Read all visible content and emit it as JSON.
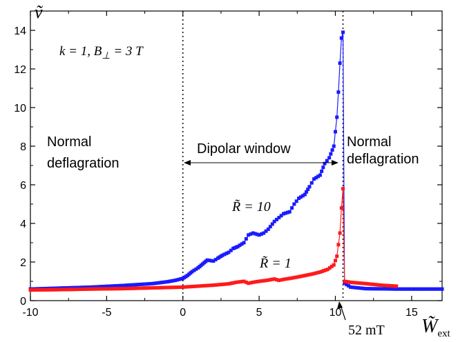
{
  "chart_data": {
    "type": "line",
    "title": "",
    "xlabel": "W̃",
    "xlabel_sub": "ext",
    "ylabel": "ṽ",
    "xlim": [
      -10,
      17
    ],
    "ylim": [
      0,
      15
    ],
    "xticks": [
      -10,
      -5,
      0,
      5,
      10,
      15
    ],
    "yticks": [
      0,
      2,
      4,
      6,
      8,
      10,
      12,
      14
    ],
    "grid": false,
    "vlines": [
      0,
      10.5
    ],
    "parameter_label": {
      "prefix": "k = 1, B",
      "sub": "⊥",
      "suffix": " = 3 T"
    },
    "region_labels": {
      "left": [
        "Normal",
        "deflagration"
      ],
      "center": "Dipolar window",
      "right": [
        "Normal",
        "deflagration"
      ]
    },
    "arrow_annotation": "52 mT",
    "series": [
      {
        "name": "R̃ = 10",
        "color": "#1a1aff",
        "x": [
          -10,
          -8,
          -6,
          -4,
          -2,
          -1,
          -0.5,
          0,
          0.3,
          0.6,
          1,
          1.3,
          1.6,
          2,
          2.3,
          2.6,
          3,
          3.3,
          3.6,
          4,
          4.3,
          4.6,
          5,
          5.3,
          5.6,
          6,
          6.3,
          6.6,
          7,
          7.3,
          7.6,
          8,
          8.3,
          8.6,
          9,
          9.3,
          9.6,
          9.9,
          10.1,
          10.2,
          10.3,
          10.4,
          10.5,
          10.6,
          11,
          12,
          14,
          15,
          16,
          17
        ],
        "y": [
          0.6,
          0.65,
          0.7,
          0.78,
          0.88,
          0.98,
          1.05,
          1.15,
          1.3,
          1.5,
          1.7,
          1.9,
          2.1,
          2.05,
          2.2,
          2.35,
          2.5,
          2.7,
          2.8,
          3.0,
          3.4,
          3.5,
          3.4,
          3.5,
          3.7,
          4.1,
          4.3,
          4.5,
          4.6,
          5.0,
          5.3,
          5.5,
          5.9,
          6.3,
          6.5,
          7.1,
          7.4,
          8.0,
          9.5,
          10.8,
          12.3,
          13.6,
          13.9,
          0.9,
          0.7,
          0.62,
          0.6,
          0.6,
          0.6,
          0.6
        ]
      },
      {
        "name": "R̃ = 1",
        "color": "#ff1a1a",
        "x": [
          -10,
          -8,
          -6,
          -4,
          -2,
          0,
          1,
          2,
          3,
          3.5,
          4,
          4.3,
          4.6,
          5,
          5.5,
          6,
          6.3,
          6.6,
          7,
          7.5,
          8,
          8.5,
          9,
          9.5,
          9.9,
          10.1,
          10.3,
          10.4,
          10.5,
          10.6,
          11,
          12,
          13,
          14
        ],
        "y": [
          0.55,
          0.57,
          0.6,
          0.62,
          0.66,
          0.7,
          0.75,
          0.8,
          0.87,
          0.95,
          1.0,
          0.9,
          0.95,
          1.0,
          1.05,
          1.12,
          1.05,
          1.1,
          1.15,
          1.22,
          1.3,
          1.38,
          1.48,
          1.62,
          1.85,
          2.3,
          3.5,
          4.8,
          5.8,
          1.0,
          0.95,
          0.88,
          0.8,
          0.75
        ]
      }
    ]
  }
}
